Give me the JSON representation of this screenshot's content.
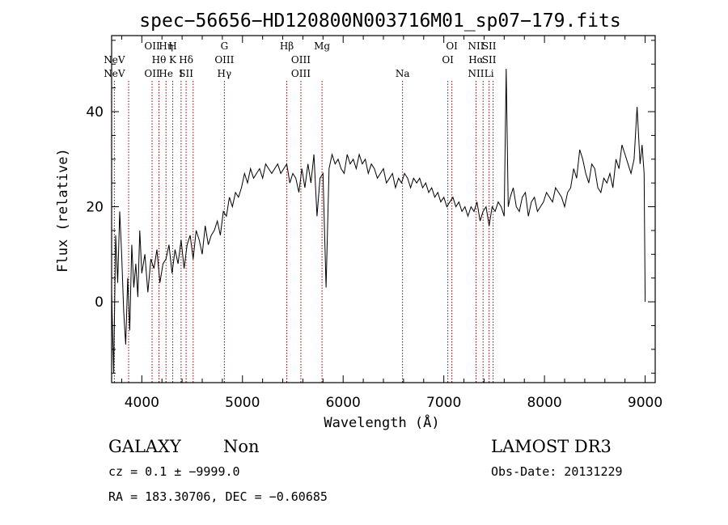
{
  "chart_data": {
    "type": "line",
    "title": "spec−56656−HD120800N003716M01_sp07−179.fits",
    "xlabel": "Wavelength (Å)",
    "ylabel": "Flux (relative)",
    "xlim": [
      3700,
      9100
    ],
    "ylim": [
      -17,
      56
    ],
    "x_ticks": [
      4000,
      5000,
      6000,
      7000,
      8000,
      9000
    ],
    "y_ticks": [
      0,
      20,
      40
    ],
    "grid": false,
    "series": [
      {
        "x": [
          3700,
          3720,
          3740,
          3760,
          3780,
          3800,
          3820,
          3840,
          3860,
          3880,
          3900,
          3920,
          3940,
          3960,
          3980,
          4000,
          4030,
          4060,
          4090,
          4120,
          4150,
          4180,
          4210,
          4240,
          4270,
          4300,
          4330,
          4360,
          4390,
          4420,
          4450,
          4480,
          4510,
          4540,
          4570,
          4600,
          4630,
          4660,
          4690,
          4720,
          4750,
          4780,
          4810,
          4840,
          4870,
          4900,
          4930,
          4960,
          4990,
          5020,
          5050,
          5080,
          5110,
          5140,
          5170,
          5200,
          5230,
          5260,
          5290,
          5320,
          5350,
          5380,
          5410,
          5440,
          5470,
          5500,
          5530,
          5560,
          5590,
          5620,
          5650,
          5680,
          5710,
          5740,
          5770,
          5800,
          5830,
          5860,
          5890,
          5920,
          5950,
          5980,
          6010,
          6040,
          6070,
          6100,
          6130,
          6160,
          6190,
          6220,
          6250,
          6280,
          6310,
          6340,
          6370,
          6400,
          6430,
          6460,
          6490,
          6520,
          6550,
          6580,
          6610,
          6640,
          6670,
          6700,
          6730,
          6760,
          6790,
          6820,
          6850,
          6880,
          6910,
          6940,
          6970,
          7000,
          7030,
          7060,
          7090,
          7120,
          7150,
          7180,
          7210,
          7240,
          7270,
          7300,
          7330,
          7360,
          7390,
          7420,
          7450,
          7480,
          7510,
          7540,
          7570,
          7600,
          7620,
          7640,
          7660,
          7690,
          7720,
          7750,
          7780,
          7810,
          7840,
          7870,
          7900,
          7930,
          7960,
          7990,
          8020,
          8050,
          8080,
          8110,
          8140,
          8170,
          8200,
          8230,
          8260,
          8290,
          8320,
          8350,
          8380,
          8410,
          8440,
          8470,
          8500,
          8530,
          8560,
          8590,
          8620,
          8650,
          8680,
          8710,
          8740,
          8770,
          8800,
          8830,
          8860,
          8890,
          8920,
          8950,
          8970,
          8990,
          9000
        ],
        "y": [
          2,
          -15,
          14,
          4,
          19,
          10,
          -2,
          -9,
          5,
          -6,
          12,
          3,
          8,
          1,
          15,
          6,
          10,
          2,
          9,
          7,
          11,
          4,
          8,
          9,
          12,
          6,
          11,
          8,
          13,
          7,
          12,
          14,
          9,
          15,
          13,
          10,
          16,
          12,
          14,
          15,
          17,
          14,
          19,
          18,
          22,
          20,
          23,
          22,
          24,
          27,
          25,
          28,
          26,
          27,
          28,
          26,
          29,
          28,
          27,
          28,
          29,
          27,
          28,
          29,
          25,
          27,
          26,
          23,
          28,
          24,
          29,
          25,
          31,
          18,
          26,
          27,
          3,
          28,
          31,
          29,
          30,
          28,
          27,
          31,
          29,
          30,
          28,
          31,
          29,
          30,
          27,
          29,
          28,
          26,
          27,
          28,
          25,
          26,
          27,
          24,
          26,
          25,
          27,
          26,
          24,
          26,
          25,
          26,
          24,
          25,
          23,
          24,
          22,
          23,
          21,
          22,
          20,
          21,
          22,
          20,
          21,
          19,
          20,
          18,
          20,
          19,
          21,
          17,
          19,
          20,
          16,
          20,
          19,
          21,
          20,
          18,
          49,
          20,
          22,
          24,
          20,
          19,
          22,
          23,
          18,
          21,
          22,
          19,
          20,
          21,
          23,
          22,
          21,
          24,
          23,
          22,
          20,
          23,
          24,
          28,
          26,
          32,
          30,
          27,
          25,
          29,
          28,
          24,
          23,
          26,
          25,
          27,
          24,
          30,
          28,
          33,
          31,
          29,
          27,
          30,
          41,
          29,
          33,
          27,
          0
        ]
      }
    ],
    "emission_lines": [
      {
        "wl": 3727,
        "labels": [
          {
            "row": 0,
            "text": "NeV"
          },
          {
            "row": 1,
            "text": "NeV"
          }
        ]
      },
      {
        "wl": 3869,
        "labels": []
      },
      {
        "wl": 4102,
        "labels": [
          {
            "row": 3,
            "text": "OII"
          },
          {
            "row": 5,
            "text": "OII"
          }
        ]
      },
      {
        "wl": 4170,
        "labels": [
          {
            "row": 4,
            "text": "Hθ"
          }
        ]
      },
      {
        "wl": 4240,
        "labels": [
          {
            "row": 3,
            "text": "Hη"
          },
          {
            "row": 5,
            "text": "He"
          }
        ]
      },
      {
        "wl": 4307,
        "labels": [
          {
            "row": 3,
            "text": "H"
          },
          {
            "row": 4,
            "text": "K"
          }
        ]
      },
      {
        "wl": 4390,
        "labels": [
          {
            "row": 5,
            "text": "I"
          }
        ]
      },
      {
        "wl": 4440,
        "labels": [
          {
            "row": 4,
            "text": "Hδ"
          },
          {
            "row": 5,
            "text": "SII"
          }
        ]
      },
      {
        "wl": 4510,
        "labels": []
      },
      {
        "wl": 4820,
        "labels": [
          {
            "row": 3,
            "text": "G"
          },
          {
            "row": 4,
            "text": "OIII"
          },
          {
            "row": 5,
            "text": "Hγ"
          }
        ]
      },
      {
        "wl": 5440,
        "labels": [
          {
            "row": 3,
            "text": "Hβ"
          }
        ]
      },
      {
        "wl": 5580,
        "labels": [
          {
            "row": 4,
            "text": "OIII"
          },
          {
            "row": 5,
            "text": "OIII"
          }
        ]
      },
      {
        "wl": 5790,
        "labels": [
          {
            "row": 3,
            "text": "Mg"
          }
        ]
      },
      {
        "wl": 6590,
        "labels": [
          {
            "row": 5,
            "text": "Na"
          }
        ]
      },
      {
        "wl": 7040,
        "labels": [
          {
            "row": 4,
            "text": "OI"
          }
        ]
      },
      {
        "wl": 7080,
        "labels": [
          {
            "row": 3,
            "text": "OI"
          }
        ]
      },
      {
        "wl": 7320,
        "labels": [
          {
            "row": 3,
            "text": "NII"
          },
          {
            "row": 4,
            "text": "Hα"
          },
          {
            "row": 5,
            "text": "NII"
          }
        ]
      },
      {
        "wl": 7390,
        "labels": []
      },
      {
        "wl": 7450,
        "labels": [
          {
            "row": 3,
            "text": "SII"
          },
          {
            "row": 4,
            "text": "SII"
          },
          {
            "row": 5,
            "text": "Li"
          }
        ]
      },
      {
        "wl": 7490,
        "labels": []
      }
    ],
    "line_color": "#000000",
    "marker_color": "#8b0000"
  },
  "info": {
    "class_label": "GALAXY",
    "subclass_label": "Non",
    "survey": "LAMOST DR3",
    "cz_line": "cz = 0.1 ± −9999.0",
    "obs_date": "Obs-Date: 20131229",
    "coords_line": "RA = 183.30706, DEC =  −0.60685"
  }
}
